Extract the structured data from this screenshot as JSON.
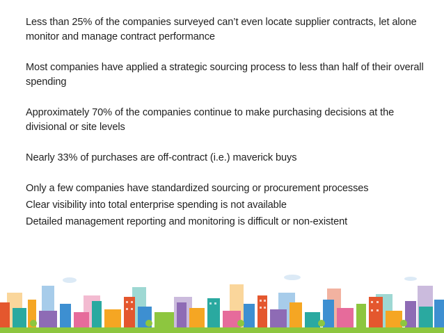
{
  "paragraphs": [
    "Less than 25% of the companies surveyed can’t even locate supplier contracts, let alone monitor and manage contract performance",
    "Most companies have applied a strategic sourcing process to less than half of their overall spending",
    "Approximately 70% of the companies continue to make purchasing decisions at the divisional or site levels",
    "Nearly 33% of purchases are off-contract (i.e.) maverick buys",
    "Only a few companies have standardized sourcing or procurement processes",
    "Clear visibility into total enterprise spending is not available",
    "Detailed management reporting and monitoring is difficult or non-existent"
  ],
  "colors": {
    "text": "#1f1f1f",
    "ground": "#8dc63f",
    "orange": "#f5a623",
    "teal": "#2aa9a0",
    "purple": "#8e6bb5",
    "blue": "#3d8fd1",
    "red": "#e4572e",
    "pink": "#e66b9b"
  }
}
